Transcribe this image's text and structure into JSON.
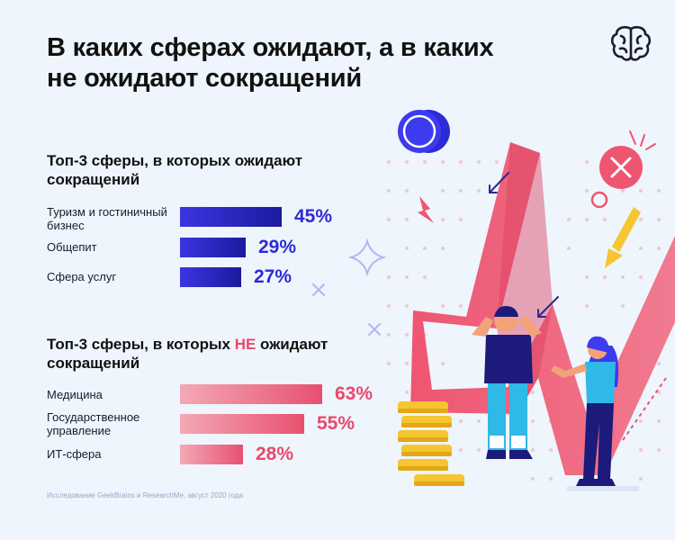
{
  "title": {
    "line1": "В каких сферах ожидают, а в каких",
    "line2": "не ожидают сокращений"
  },
  "brand": {
    "icon": "brain-icon"
  },
  "chart_data": [
    {
      "type": "bar",
      "orientation": "horizontal",
      "title_lines": [
        "Топ-3 сферы, в которых ожидают",
        "сокращений"
      ],
      "categories": [
        [
          "Туризм и гостиничный",
          "бизнес"
        ],
        [
          "Общепит"
        ],
        [
          "Сфера услуг"
        ]
      ],
      "values": [
        45,
        29,
        27
      ],
      "value_labels": [
        "45%",
        "29%",
        "27%"
      ],
      "unit": "%",
      "color": "#2d2bd6"
    },
    {
      "type": "bar",
      "orientation": "horizontal",
      "title_parts": [
        "Топ-3 сферы, в которых ",
        "НЕ",
        " ожидают"
      ],
      "title_line2": "сокращений",
      "categories": [
        [
          "Медицина"
        ],
        [
          "Государственное",
          "управление"
        ],
        [
          "ИТ-сфера"
        ]
      ],
      "values": [
        63,
        55,
        28
      ],
      "value_labels": [
        "63%",
        "55%",
        "28%"
      ],
      "unit": "%",
      "color": "#e8496a"
    }
  ],
  "footnote": "Исследование GeekBrains и ResearchMe, август 2020 года",
  "colors": {
    "blue": "#2d2bd6",
    "red": "#e8496a",
    "background": "#eef5fc"
  }
}
